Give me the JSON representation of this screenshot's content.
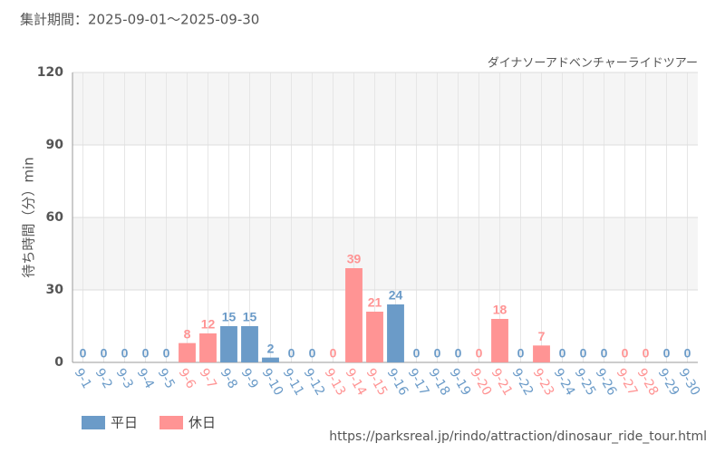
{
  "chart_data": {
    "type": "bar",
    "title": "集計期間：2025-09-01～2025-09-30",
    "subtitle": "ダイナソーアドベンチャーライドツアー",
    "y_label": "待ち時間（分）min",
    "source": "https://parksreal.jp/rindo/attraction/dinosaur_ride_tour.html",
    "categories": [
      "9-1",
      "9-2",
      "9-3",
      "9-4",
      "9-5",
      "9-6",
      "9-7",
      "9-8",
      "9-9",
      "9-10",
      "9-11",
      "9-12",
      "9-13",
      "9-14",
      "9-15",
      "9-16",
      "9-17",
      "9-18",
      "9-19",
      "9-20",
      "9-21",
      "9-22",
      "9-23",
      "9-24",
      "9-25",
      "9-26",
      "9-27",
      "9-28",
      "9-29",
      "9-30"
    ],
    "series": [
      {
        "name": "平日",
        "color": "#6b9bc8",
        "values": [
          0,
          0,
          0,
          0,
          0,
          null,
          null,
          15,
          15,
          2,
          0,
          0,
          null,
          null,
          null,
          24,
          0,
          0,
          0,
          null,
          null,
          0,
          null,
          0,
          0,
          0,
          null,
          null,
          0,
          0
        ]
      },
      {
        "name": "休日",
        "color": "#ff9494",
        "values": [
          null,
          null,
          null,
          null,
          null,
          8,
          12,
          null,
          null,
          null,
          null,
          null,
          0,
          39,
          21,
          null,
          null,
          null,
          null,
          0,
          18,
          null,
          7,
          null,
          null,
          null,
          0,
          0,
          null,
          null
        ]
      }
    ],
    "ylim": [
      0,
      120
    ],
    "yticks": [
      0,
      30,
      60,
      90,
      120
    ],
    "grid": true
  }
}
